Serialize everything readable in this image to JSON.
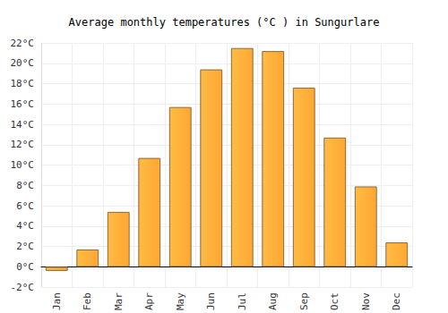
{
  "chart_data": {
    "type": "bar",
    "title": "Average monthly temperatures (°C ) in Sungurlare",
    "categories": [
      "Jan",
      "Feb",
      "Mar",
      "Apr",
      "May",
      "Jun",
      "Jul",
      "Aug",
      "Sep",
      "Oct",
      "Nov",
      "Dec"
    ],
    "values": [
      -0.4,
      1.7,
      5.4,
      10.7,
      15.7,
      19.4,
      21.5,
      21.2,
      17.6,
      12.7,
      7.9,
      2.4
    ],
    "color": "#ffa733",
    "ylim": [
      -2,
      22
    ],
    "yticks": [
      {
        "value": -2,
        "label": "-2°C"
      },
      {
        "value": 0,
        "label": "0°C"
      },
      {
        "value": 2,
        "label": "2°C"
      },
      {
        "value": 4,
        "label": "4°C"
      },
      {
        "value": 6,
        "label": "6°C"
      },
      {
        "value": 8,
        "label": "8°C"
      },
      {
        "value": 10,
        "label": "10°C"
      },
      {
        "value": 12,
        "label": "12°C"
      },
      {
        "value": 14,
        "label": "14°C"
      },
      {
        "value": 16,
        "label": "16°C"
      },
      {
        "value": 18,
        "label": "18°C"
      },
      {
        "value": 20,
        "label": "20°C"
      },
      {
        "value": 22,
        "label": "22°C"
      }
    ],
    "grid": true
  }
}
